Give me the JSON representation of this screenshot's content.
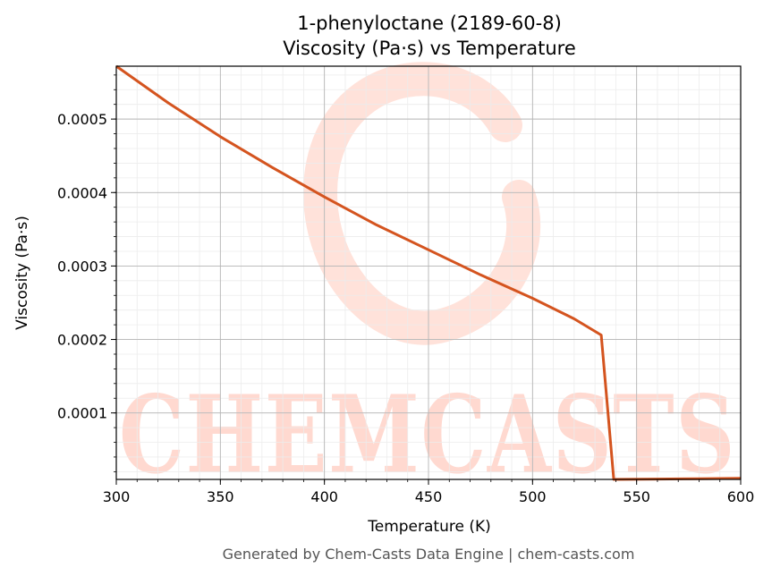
{
  "chart_data": {
    "type": "line",
    "title": "1-phenyloctane (2189-60-8)",
    "subtitle": "Viscosity (Pa·s) vs Temperature",
    "xlabel": "Temperature (K)",
    "ylabel": "Viscosity (Pa·s)",
    "xlim": [
      300,
      600
    ],
    "ylim": [
      9.5e-06,
      0.000572
    ],
    "x_ticks": [
      300,
      350,
      400,
      450,
      500,
      550,
      600
    ],
    "x_tick_labels": [
      "300",
      "350",
      "400",
      "450",
      "500",
      "550",
      "600"
    ],
    "y_ticks": [
      0.0001,
      0.0002,
      0.0003,
      0.0004,
      0.0005
    ],
    "y_tick_labels": [
      "0.0001",
      "0.0002",
      "0.0003",
      "0.0004",
      "0.0005"
    ],
    "grid": true,
    "series": [
      {
        "color": "#d4541f",
        "x": [
          300,
          325,
          350,
          375,
          400,
          425,
          450,
          475,
          500,
          520,
          533,
          539,
          560,
          580,
          600
        ],
        "y": [
          0.000572,
          0.000522,
          0.000476,
          0.000434,
          0.000394,
          0.000356,
          0.000322,
          0.000288,
          0.000256,
          0.000228,
          0.000206,
          9.5e-06,
          1e-05,
          1.05e-05,
          1.1e-05
        ]
      }
    ],
    "watermark": "CHEMCASTS",
    "footer": "Generated by Chem-Casts Data Engine | chem-casts.com"
  }
}
